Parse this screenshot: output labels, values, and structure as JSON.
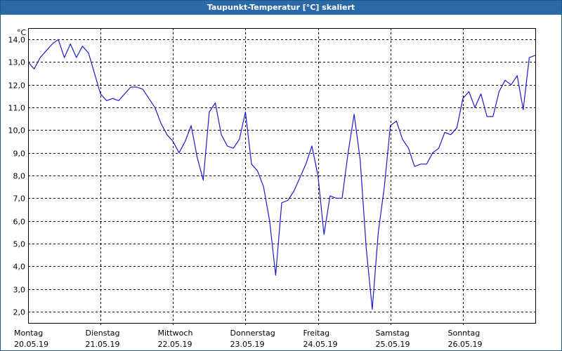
{
  "window": {
    "title": "Taupunkt-Temperatur [°C] skaliert"
  },
  "colors": {
    "line": "#1a1acc",
    "grid": "#000000",
    "title_bar": "#2b6aa6",
    "title_text": "#ffffff"
  },
  "chart_data": {
    "type": "line",
    "title": "Taupunkt-Temperatur [°C] skaliert",
    "ylabel": "°C",
    "xlabel": "",
    "ylim": [
      1.5,
      14.5
    ],
    "yticks": [
      "2,0",
      "3,0",
      "4,0",
      "5,0",
      "6,0",
      "7,0",
      "8,0",
      "9,0",
      "10,0",
      "11,0",
      "12,0",
      "13,0",
      "14,0"
    ],
    "yticks_values": [
      2,
      3,
      4,
      5,
      6,
      7,
      8,
      9,
      10,
      11,
      12,
      13,
      14
    ],
    "xlim": [
      "2019-05-20",
      "2019-05-27"
    ],
    "xticks": [
      {
        "day": "Montag",
        "date": "20.05.19"
      },
      {
        "day": "Dienstag",
        "date": "21.05.19"
      },
      {
        "day": "Mittwoch",
        "date": "22.05.19"
      },
      {
        "day": "Donnerstag",
        "date": "23.05.19"
      },
      {
        "day": "Freitag",
        "date": "24.05.19"
      },
      {
        "day": "Samstag",
        "date": "25.05.19"
      },
      {
        "day": "Sonntag",
        "date": "26.05.19"
      }
    ],
    "grid": true,
    "series": [
      {
        "color": "#1a1acc",
        "x": [
          "2019-05-20T00:00",
          "2019-05-20T02:00",
          "2019-05-20T04:00",
          "2019-05-20T06:00",
          "2019-05-20T08:00",
          "2019-05-20T10:00",
          "2019-05-20T12:00",
          "2019-05-20T14:00",
          "2019-05-20T16:00",
          "2019-05-20T18:00",
          "2019-05-20T20:00",
          "2019-05-20T22:00",
          "2019-05-21T00:00",
          "2019-05-21T02:00",
          "2019-05-21T04:00",
          "2019-05-21T06:00",
          "2019-05-21T08:00",
          "2019-05-21T10:00",
          "2019-05-21T12:00",
          "2019-05-21T14:00",
          "2019-05-21T16:00",
          "2019-05-21T18:00",
          "2019-05-21T20:00",
          "2019-05-21T22:00",
          "2019-05-22T00:00",
          "2019-05-22T02:00",
          "2019-05-22T04:00",
          "2019-05-22T06:00",
          "2019-05-22T08:00",
          "2019-05-22T10:00",
          "2019-05-22T12:00",
          "2019-05-22T14:00",
          "2019-05-22T16:00",
          "2019-05-22T18:00",
          "2019-05-22T20:00",
          "2019-05-22T22:00",
          "2019-05-23T00:00",
          "2019-05-23T02:00",
          "2019-05-23T04:00",
          "2019-05-23T06:00",
          "2019-05-23T08:00",
          "2019-05-23T10:00",
          "2019-05-23T12:00",
          "2019-05-23T14:00",
          "2019-05-23T16:00",
          "2019-05-23T18:00",
          "2019-05-23T20:00",
          "2019-05-23T22:00",
          "2019-05-24T00:00",
          "2019-05-24T02:00",
          "2019-05-24T04:00",
          "2019-05-24T06:00",
          "2019-05-24T08:00",
          "2019-05-24T10:00",
          "2019-05-24T12:00",
          "2019-05-24T14:00",
          "2019-05-24T16:00",
          "2019-05-24T18:00",
          "2019-05-24T20:00",
          "2019-05-24T22:00",
          "2019-05-25T00:00",
          "2019-05-25T02:00",
          "2019-05-25T04:00",
          "2019-05-25T06:00",
          "2019-05-25T08:00",
          "2019-05-25T10:00",
          "2019-05-25T12:00",
          "2019-05-25T14:00",
          "2019-05-25T16:00",
          "2019-05-25T18:00",
          "2019-05-25T20:00",
          "2019-05-25T22:00",
          "2019-05-26T00:00",
          "2019-05-26T02:00",
          "2019-05-26T04:00",
          "2019-05-26T06:00",
          "2019-05-26T08:00",
          "2019-05-26T10:00",
          "2019-05-26T12:00",
          "2019-05-26T14:00",
          "2019-05-26T16:00",
          "2019-05-26T18:00",
          "2019-05-26T20:00",
          "2019-05-26T22:00",
          "2019-05-27T00:00"
        ],
        "values": [
          13.0,
          12.7,
          13.2,
          13.5,
          13.8,
          14.0,
          13.2,
          13.8,
          13.2,
          13.7,
          13.4,
          12.5,
          11.6,
          11.3,
          11.4,
          11.3,
          11.6,
          11.9,
          11.9,
          11.8,
          11.4,
          11.0,
          10.3,
          9.8,
          9.5,
          9.0,
          9.5,
          10.2,
          8.8,
          7.8,
          10.8,
          11.2,
          9.8,
          9.3,
          9.2,
          9.6,
          10.8,
          8.5,
          8.2,
          7.5,
          6.0,
          3.6,
          6.8,
          6.9,
          7.3,
          7.9,
          8.5,
          9.3,
          8.0,
          5.4,
          7.1,
          7.0,
          7.0,
          9.0,
          10.7,
          8.7,
          4.8,
          2.1,
          5.5,
          7.5,
          10.2,
          10.4,
          9.6,
          9.2,
          8.4,
          8.5,
          8.5,
          9.0,
          9.2,
          9.9,
          9.8,
          10.1,
          11.4,
          11.7,
          11.0,
          11.6,
          10.6,
          10.6,
          11.7,
          12.2,
          12.0,
          12.4,
          10.9,
          13.2,
          13.3
        ]
      }
    ]
  }
}
